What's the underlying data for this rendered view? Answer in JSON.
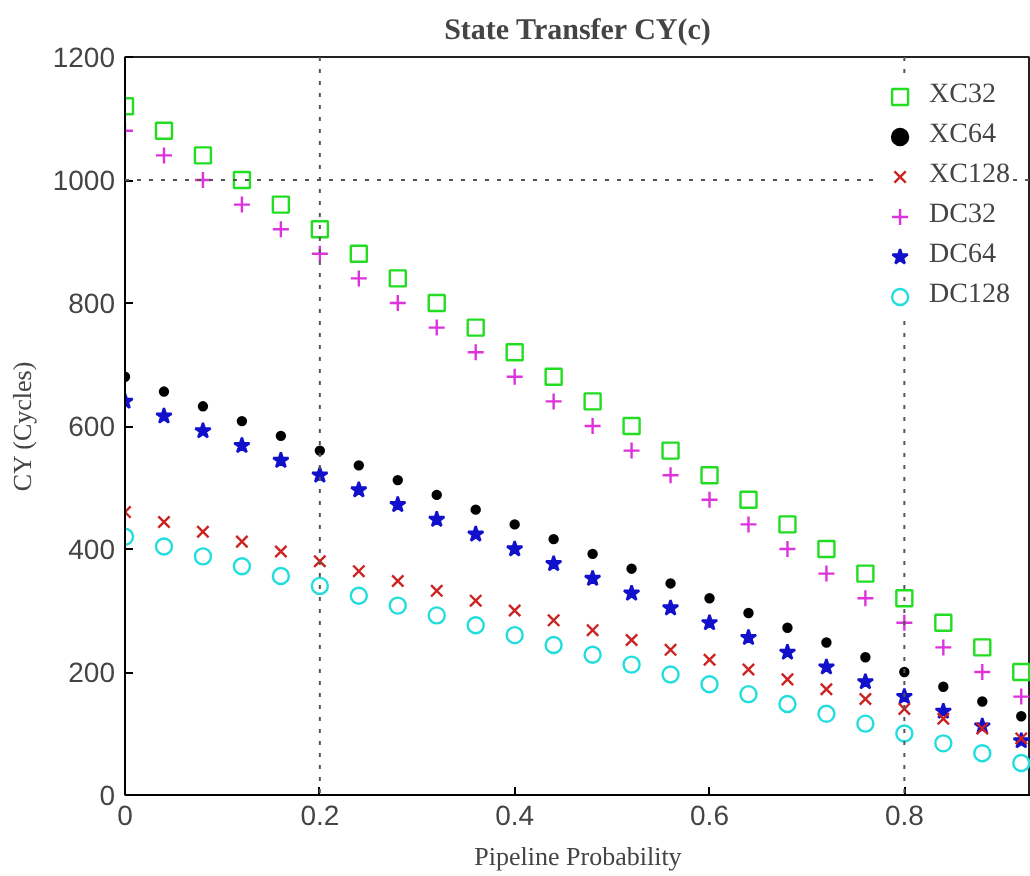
{
  "chart_data": {
    "type": "scatter",
    "title": "State Transfer CY(c)",
    "xlabel": "Pipeline Probability",
    "ylabel": "CY (Cycles)",
    "x": [
      0,
      0.04,
      0.08,
      0.12,
      0.16,
      0.2,
      0.24,
      0.28,
      0.32,
      0.36,
      0.4,
      0.44,
      0.48,
      0.52,
      0.56,
      0.6,
      0.64,
      0.68,
      0.72,
      0.76,
      0.8,
      0.84,
      0.88,
      0.92
    ],
    "series": [
      {
        "name": "XC32",
        "color": "#22dd22",
        "marker": "square",
        "values": [
          1120,
          1080,
          1040,
          1000,
          960,
          920,
          880,
          840,
          800,
          760,
          720,
          680,
          640,
          600,
          560,
          520,
          480,
          440,
          400,
          360,
          320,
          280,
          240,
          200
        ]
      },
      {
        "name": "XC64",
        "color": "#000000",
        "marker": "circle",
        "line_style": "dotted",
        "values": [
          680,
          656,
          632,
          608,
          584,
          560,
          536,
          512,
          488,
          464,
          440,
          416,
          392,
          368,
          344,
          320,
          296,
          272,
          248,
          224,
          200,
          176,
          152,
          128
        ]
      },
      {
        "name": "XC128",
        "color": "#cc2222",
        "marker": "x",
        "values": [
          460,
          444,
          428,
          412,
          396,
          380,
          364,
          348,
          332,
          316,
          300,
          284,
          268,
          252,
          236,
          220,
          204,
          188,
          172,
          156,
          140,
          124,
          108,
          92
        ]
      },
      {
        "name": "DC32",
        "color": "#dd33dd",
        "marker": "cross",
        "values": [
          1080,
          1040,
          1000,
          960,
          920,
          880,
          840,
          800,
          760,
          720,
          680,
          640,
          600,
          560,
          520,
          480,
          440,
          400,
          360,
          320,
          280,
          240,
          200,
          160
        ]
      },
      {
        "name": "DC64",
        "color": "#1111cc",
        "marker": "star",
        "values": [
          640,
          616,
          592,
          568,
          544,
          520,
          496,
          472,
          448,
          424,
          400,
          376,
          352,
          328,
          304,
          280,
          256,
          232,
          208,
          184,
          160,
          136,
          112,
          88
        ]
      },
      {
        "name": "DC128",
        "color": "#22dddd",
        "marker": "circle",
        "values": [
          420,
          404,
          388,
          372,
          356,
          340,
          324,
          308,
          292,
          276,
          260,
          244,
          228,
          212,
          196,
          180,
          164,
          148,
          132,
          116,
          100,
          84,
          68,
          52
        ]
      }
    ],
    "xlim": [
      0,
      0.93
    ],
    "ylim": [
      0,
      1200
    ],
    "xticks": [
      0,
      0.2,
      0.4,
      0.6,
      0.8
    ],
    "yticks": [
      0,
      200,
      400,
      600,
      800,
      1000,
      1200
    ],
    "ref_lines": [
      {
        "axis": "x",
        "value": 0.2,
        "line_style": "dotted",
        "color": "#555555"
      },
      {
        "axis": "x",
        "value": 0.8,
        "line_style": "dotted",
        "color": "#555555"
      },
      {
        "axis": "y",
        "value": 1000,
        "line_style": "dotted",
        "color": "#555555"
      }
    ],
    "grid": false,
    "legend": "top right"
  }
}
